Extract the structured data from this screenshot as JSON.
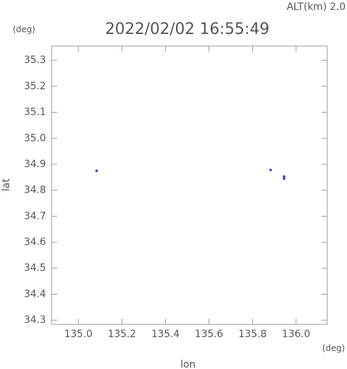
{
  "chart_data": {
    "type": "scatter",
    "title": "2022/02/02 16:55:49",
    "subtitle": "ALT(km) 2.0",
    "y_unit": "(deg)",
    "x_unit": "(deg)",
    "x_label": "lon",
    "y_label": "lat",
    "xlim": [
      134.877,
      136.143
    ],
    "ylim": [
      34.284,
      35.355
    ],
    "xticks": [
      {
        "value": 135,
        "label": "135.0"
      },
      135.2,
      135.4,
      135.6,
      135.8,
      {
        "value": 136,
        "label": "136.0"
      }
    ],
    "yticks": [
      34.3,
      34.4,
      34.5,
      34.6,
      34.7,
      34.8,
      34.9,
      {
        "value": 35,
        "label": "35.0"
      },
      35.1,
      35.2,
      35.3
    ],
    "series": [
      {
        "color": "#3a3ad0",
        "x": [
          135.084,
          135.883,
          135.945,
          135.945
        ],
        "values": [
          34.875,
          34.878,
          34.853,
          34.845
        ]
      }
    ]
  }
}
